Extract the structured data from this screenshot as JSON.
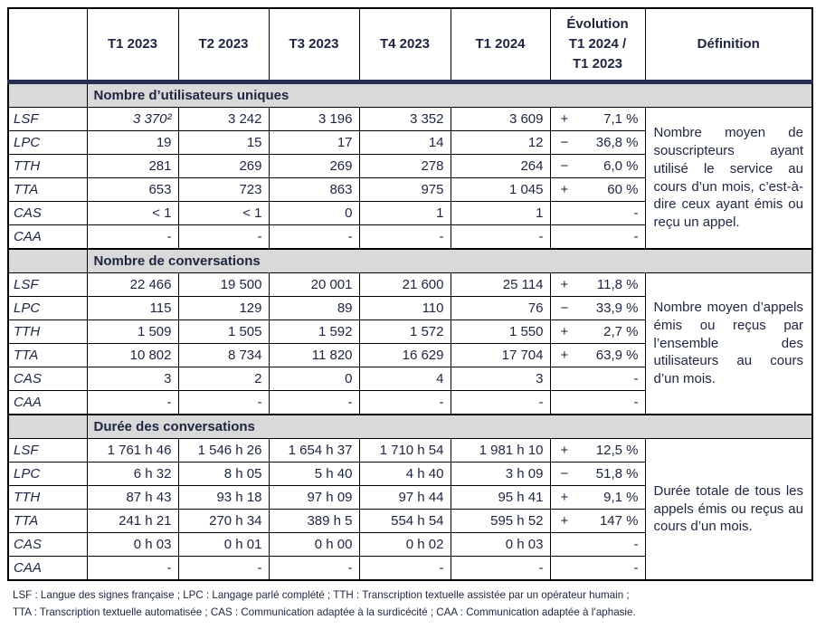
{
  "table": {
    "header": {
      "quarters": [
        "T1 2023",
        "T2 2023",
        "T3 2023",
        "T4 2023",
        "T1 2024"
      ],
      "evolution_lines": [
        "Évolution",
        "T1 2024 /",
        "T1 2023"
      ],
      "definition": "Définition"
    },
    "sections": [
      {
        "title": "Nombre d’utilisateurs uniques",
        "definition": "Nombre moyen de souscripteurs ayant utilisé le service au cours d’un mois, c’est-à-dire ceux ayant émis ou reçu un appel.",
        "rows": [
          {
            "label": "LSF",
            "values": [
              "3 370²",
              "3 242",
              "3 196",
              "3 352",
              "3 609"
            ],
            "evo_sign": "+",
            "evo_value": "7,1 %",
            "italic_values": [
              0
            ]
          },
          {
            "label": "LPC",
            "values": [
              "19",
              "15",
              "17",
              "14",
              "12"
            ],
            "evo_sign": "−",
            "evo_value": "36,8 %"
          },
          {
            "label": "TTH",
            "values": [
              "281",
              "269",
              "269",
              "278",
              "264"
            ],
            "evo_sign": "−",
            "evo_value": "6,0 %"
          },
          {
            "label": "TTA",
            "values": [
              "653",
              "723",
              "863",
              "975",
              "1 045"
            ],
            "evo_sign": "+",
            "evo_value": "60 %"
          },
          {
            "label": "CAS",
            "values": [
              "< 1",
              "< 1",
              "0",
              "1",
              "1"
            ],
            "evo_sign": "",
            "evo_value": "-"
          },
          {
            "label": "CAA",
            "values": [
              "-",
              "-",
              "-",
              "-",
              "-"
            ],
            "evo_sign": "",
            "evo_value": "-"
          }
        ]
      },
      {
        "title": "Nombre de conversations",
        "definition": "Nombre moyen d’appels émis ou reçus par l’ensemble des utilisateurs au cours d’un mois.",
        "rows": [
          {
            "label": "LSF",
            "values": [
              "22 466",
              "19 500",
              "20 001",
              "21 600",
              "25 114"
            ],
            "evo_sign": "+",
            "evo_value": "11,8 %"
          },
          {
            "label": "LPC",
            "values": [
              "115",
              "129",
              "89",
              "110",
              "76"
            ],
            "evo_sign": "−",
            "evo_value": "33,9 %"
          },
          {
            "label": "TTH",
            "values": [
              "1 509",
              "1 505",
              "1 592",
              "1 572",
              "1 550"
            ],
            "evo_sign": "+",
            "evo_value": "2,7 %"
          },
          {
            "label": "TTA",
            "values": [
              "10 802",
              "8 734",
              "11 820",
              "16 629",
              "17 704"
            ],
            "evo_sign": "+",
            "evo_value": "63,9 %"
          },
          {
            "label": "CAS",
            "values": [
              "3",
              "2",
              "0",
              "4",
              "3"
            ],
            "evo_sign": "",
            "evo_value": "-"
          },
          {
            "label": "CAA",
            "values": [
              "-",
              "-",
              "-",
              "-",
              "-"
            ],
            "evo_sign": "",
            "evo_value": "-"
          }
        ]
      },
      {
        "title": "Durée des conversations",
        "definition": "Durée totale de tous les appels émis ou reçus au cours d’un mois.",
        "rows": [
          {
            "label": "LSF",
            "values": [
              "1 761 h 46",
              "1 546 h 26",
              "1 654 h 37",
              "1 710 h 54",
              "1 981 h 10"
            ],
            "evo_sign": "+",
            "evo_value": "12,5 %"
          },
          {
            "label": "LPC",
            "values": [
              "6 h 32",
              "8 h 05",
              "5 h 40",
              "4 h 40",
              "3 h 09"
            ],
            "evo_sign": "−",
            "evo_value": "51,8 %"
          },
          {
            "label": "TTH",
            "values": [
              "87 h 43",
              "93 h 18",
              "97 h 09",
              "97 h 44",
              "95 h 41"
            ],
            "evo_sign": "+",
            "evo_value": "9,1 %"
          },
          {
            "label": "TTA",
            "values": [
              "241 h 21",
              "270 h 34",
              "389 h 5",
              "554 h 54",
              "595 h 52"
            ],
            "evo_sign": "+",
            "evo_value": "147 %"
          },
          {
            "label": "CAS",
            "values": [
              "0 h 03",
              "0 h 01",
              "0 h 00",
              "0 h 02",
              "0 h 03"
            ],
            "evo_sign": "",
            "evo_value": "-"
          },
          {
            "label": "CAA",
            "values": [
              "-",
              "-",
              "-",
              "-",
              "-"
            ],
            "evo_sign": "",
            "evo_value": "-"
          }
        ]
      }
    ],
    "footnotes": [
      "LSF : Langue des signes française ; LPC : Langage parlé complété ; TTH : Transcription textuelle assistée par un opérateur humain ;",
      "TTA : Transcription textuelle automatisée ; CAS : Communication adaptée à la surdicécité ; CAA : Communication adaptée à l’aphasie."
    ],
    "colors": {
      "section_band": "#d9d9d9",
      "header_rule": "#282d52",
      "text": "#1e2542"
    }
  }
}
